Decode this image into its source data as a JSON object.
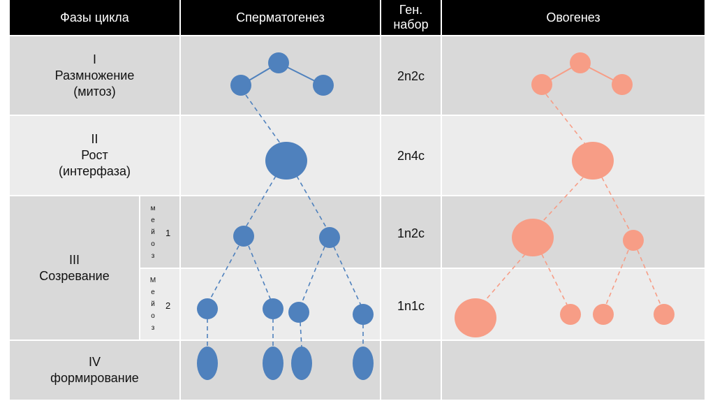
{
  "header": {
    "phases": "Фазы цикла",
    "spermatogenesis": "Сперматогенез",
    "gen_set": "Ген. набор",
    "oogenesis": "Овогенез"
  },
  "rows": [
    {
      "phase_num": "I",
      "phase_name": "Размножение",
      "phase_note": "(митоз)",
      "gen_set": "2n2c"
    },
    {
      "phase_num": "II",
      "phase_name": "Рост",
      "phase_note": "(интерфаза)",
      "gen_set": "2n4c"
    },
    {
      "phase_num": "III",
      "phase_name": "Созревание",
      "sub": [
        {
          "letters": [
            "м",
            "е",
            "й",
            "о",
            "з"
          ],
          "num": "1",
          "gen_set": "1n2c"
        },
        {
          "letters": [
            "М",
            "е",
            "й",
            "о",
            "з"
          ],
          "num": "2",
          "gen_set": "1n1c"
        }
      ]
    },
    {
      "phase_num": "IV",
      "phase_name": "формирование",
      "gen_set": ""
    }
  ],
  "colors": {
    "sperm": "#4f81bd",
    "oo": "#f79d86"
  }
}
